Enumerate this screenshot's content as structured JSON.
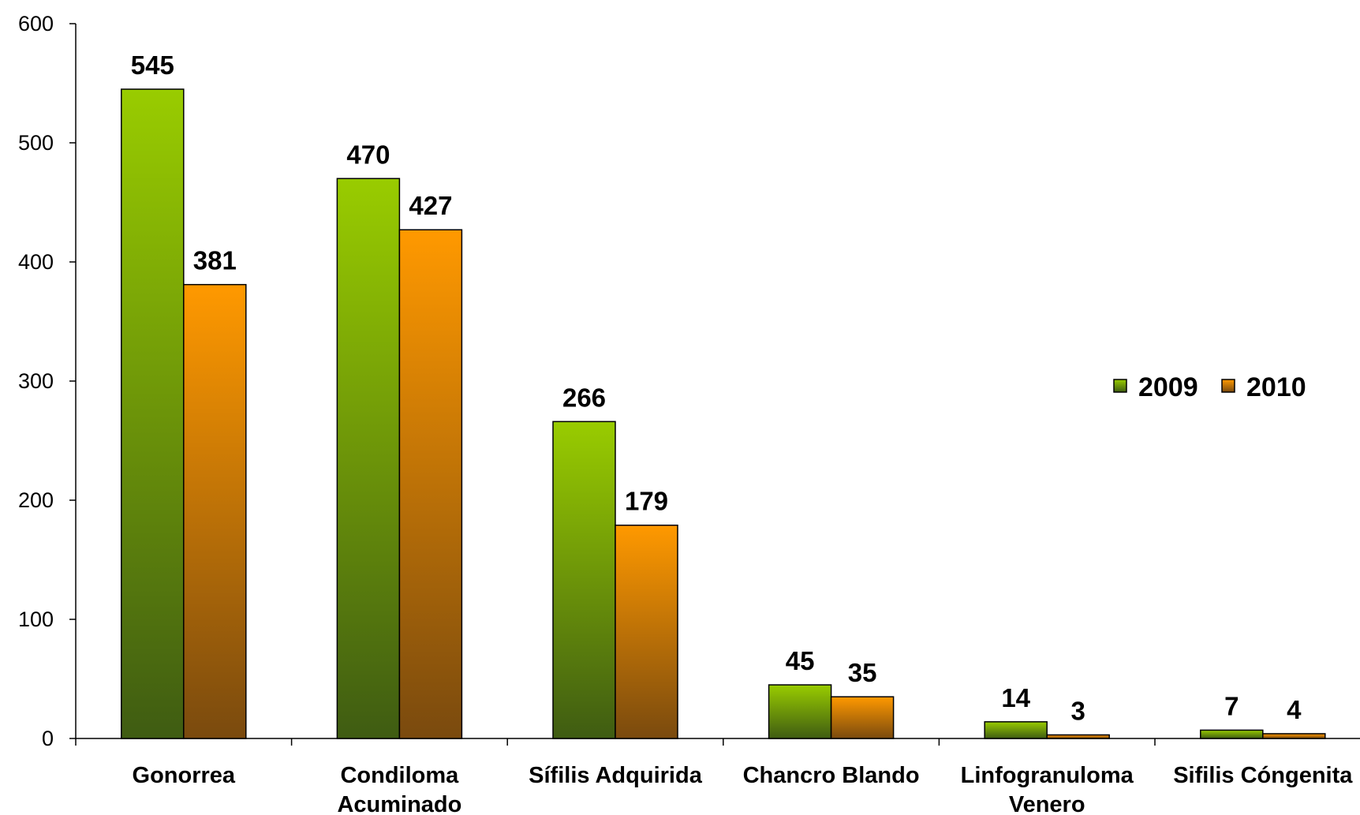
{
  "chart_data": {
    "type": "bar",
    "categories": [
      [
        "Gonorrea"
      ],
      [
        "Condiloma",
        "Acuminado"
      ],
      [
        "Sífilis Adquirida"
      ],
      [
        "Chancro Blando"
      ],
      [
        "Linfogranuloma",
        "Venero"
      ],
      [
        "Sifilis Cóngenita"
      ]
    ],
    "series": [
      {
        "name": "2009",
        "values": [
          545,
          470,
          266,
          45,
          14,
          7
        ],
        "color_top": "#99cc00",
        "color_bottom": "#3f5c12"
      },
      {
        "name": "2010",
        "values": [
          381,
          427,
          179,
          35,
          3,
          4
        ],
        "color_top": "#ff9900",
        "color_bottom": "#7a4a0e"
      }
    ],
    "ylim": [
      0,
      600
    ],
    "yticks": [
      0,
      100,
      200,
      300,
      400,
      500,
      600
    ],
    "legend_position": "right",
    "grid": false,
    "title": "",
    "xlabel": "",
    "ylabel": ""
  }
}
